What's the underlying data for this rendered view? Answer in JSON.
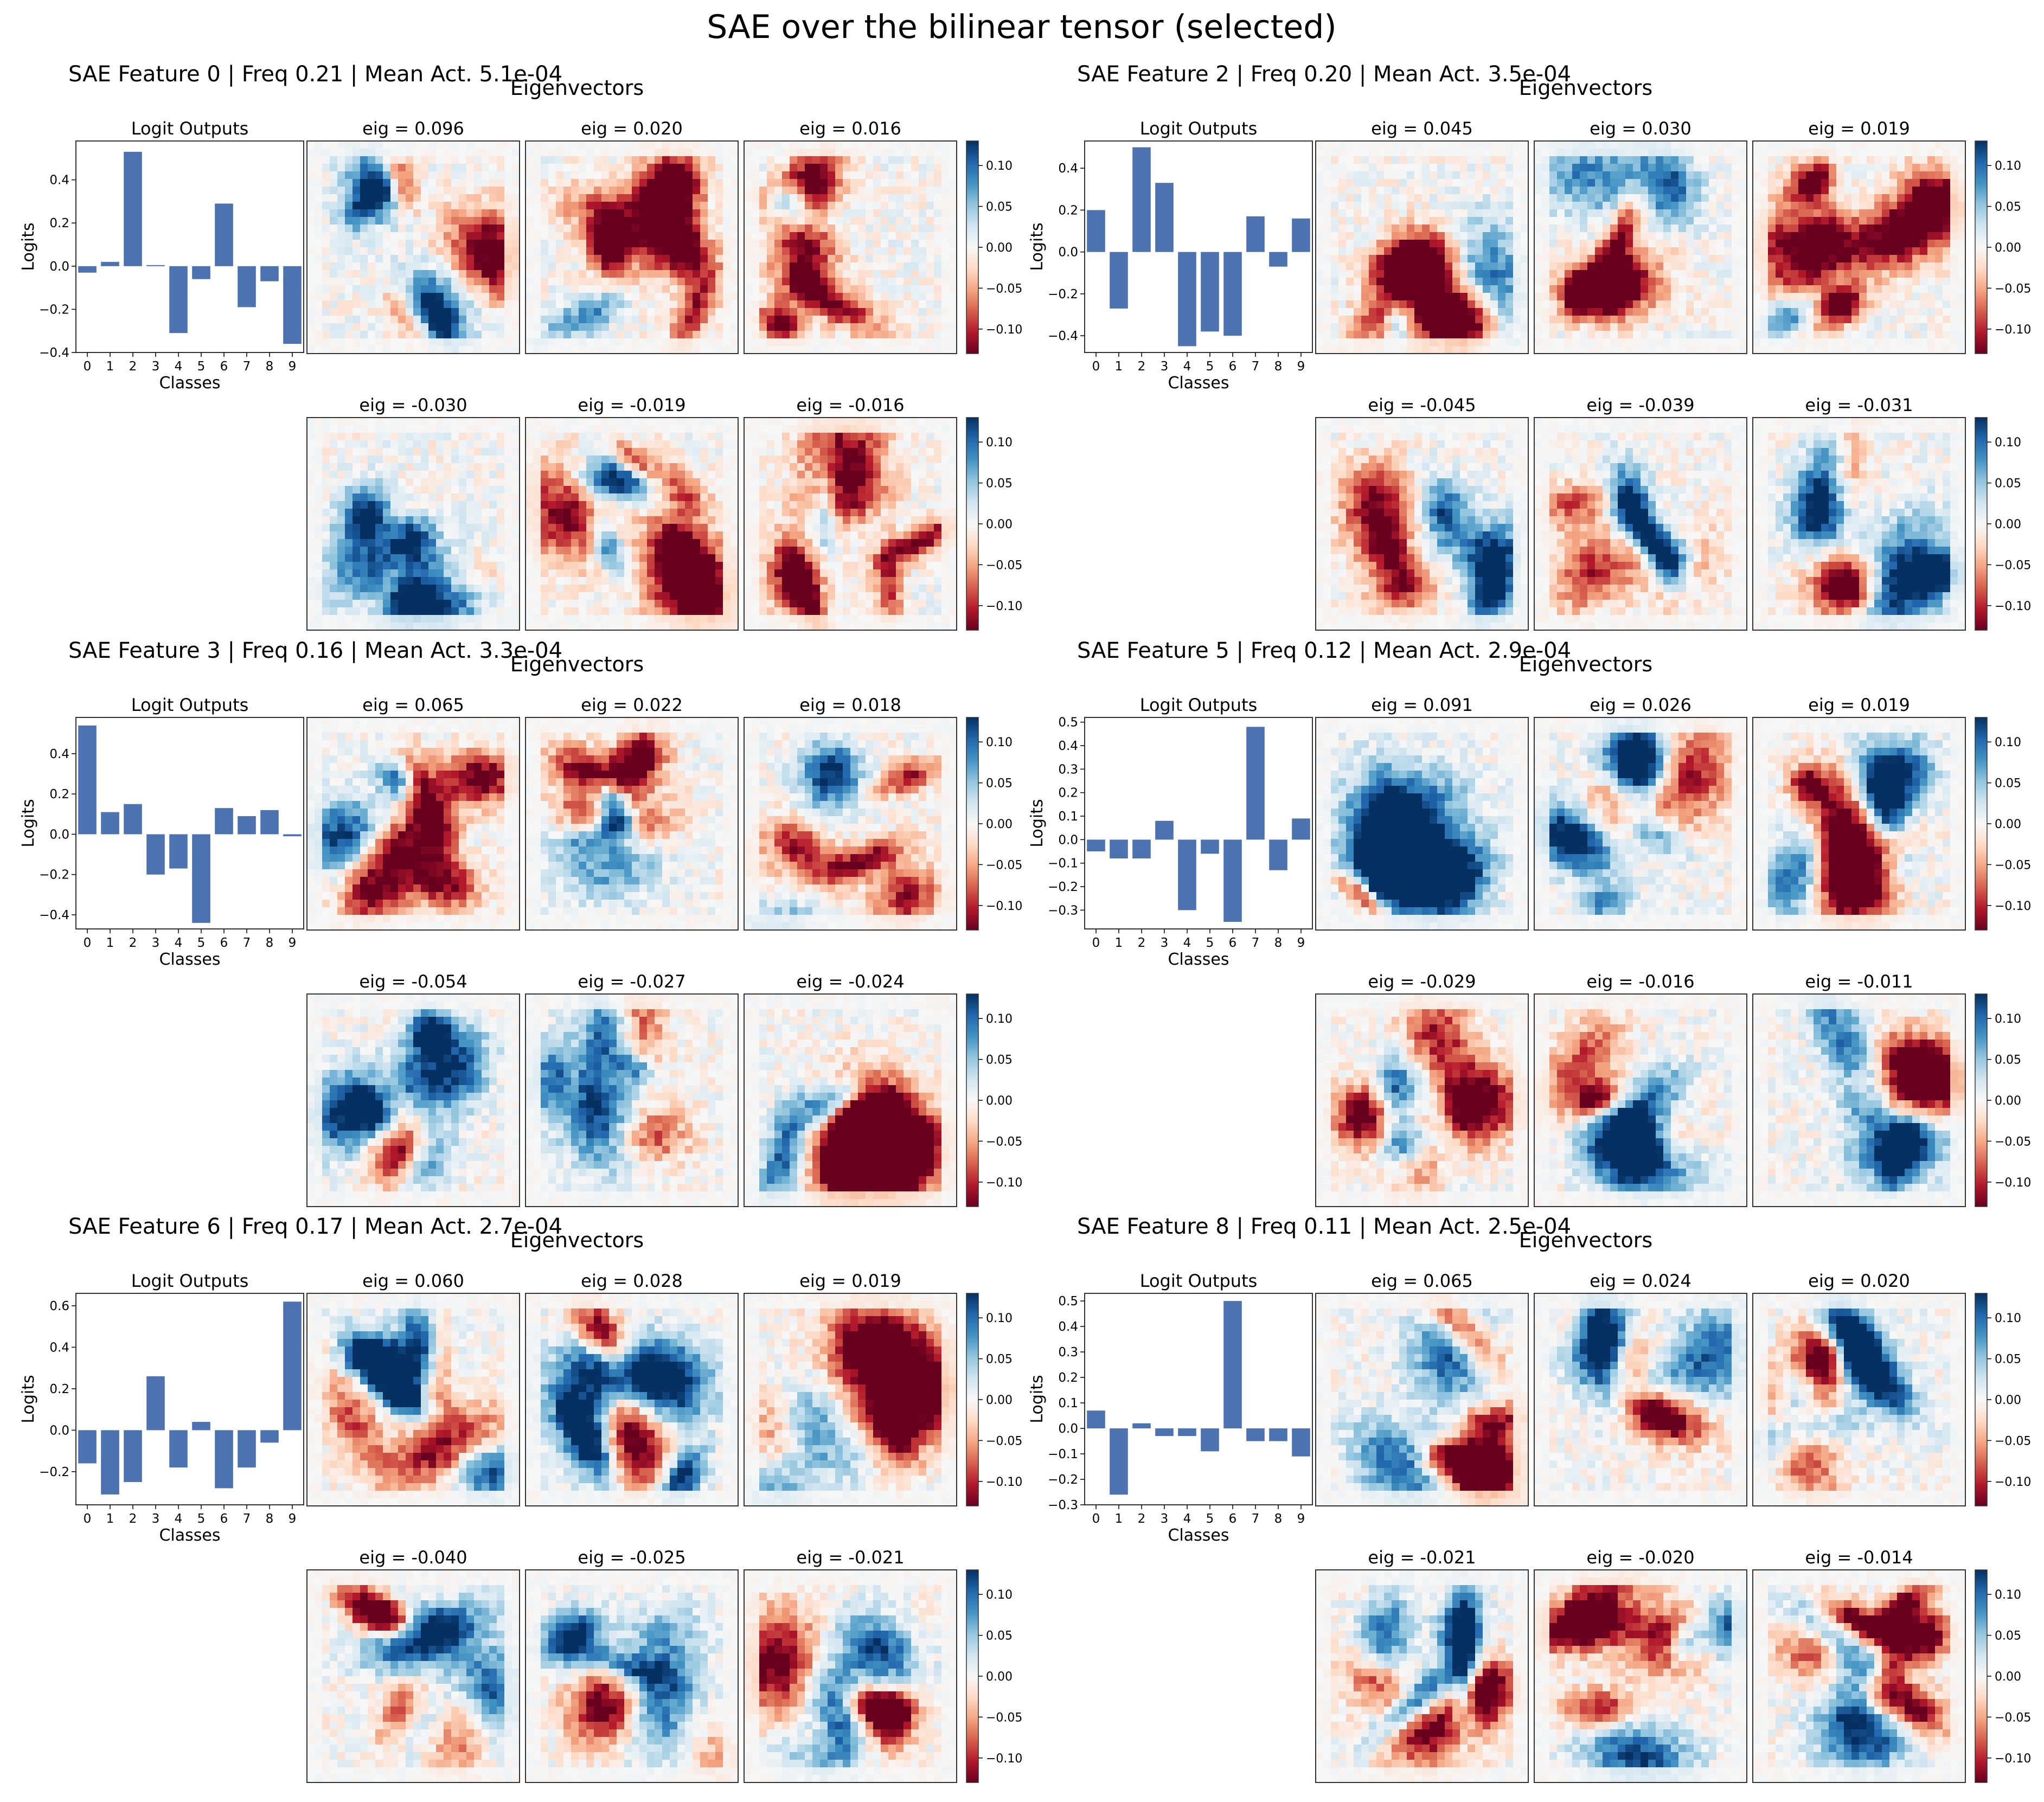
{
  "title": "SAE over the bilinear tensor (selected)",
  "eig_header": "Eigenvectors",
  "logit_title": "Logit Outputs",
  "xlabel": "Classes",
  "ylabel": "Logits",
  "eig_prefix": "eig = ",
  "colorbar": {
    "ticks": [
      "0.10",
      "0.05",
      "0.00",
      "−0.05",
      "−0.10"
    ],
    "tick_values": [
      0.1,
      0.05,
      0.0,
      -0.05,
      -0.1
    ],
    "range": [
      -0.13,
      0.13
    ],
    "colormap": "RdBu",
    "colors": [
      "#67001f",
      "#b2182b",
      "#d6604d",
      "#f4a582",
      "#fddbc7",
      "#f7f7f7",
      "#d1e5f0",
      "#92c5de",
      "#4393c3",
      "#2166ac",
      "#053061"
    ]
  },
  "bar_color": "#4c72b0",
  "chart_data": [
    {
      "type": "bar",
      "header": "SAE Feature 0 | Freq 0.21 | Mean Act. 5.1e-04",
      "categories": [
        "0",
        "1",
        "2",
        "3",
        "4",
        "5",
        "6",
        "7",
        "8",
        "9"
      ],
      "values": [
        -0.03,
        0.02,
        0.53,
        0.005,
        -0.31,
        -0.06,
        0.29,
        -0.19,
        -0.07,
        -0.36
      ],
      "ylim": [
        -0.4,
        0.58
      ],
      "yticks": [
        -0.4,
        -0.2,
        0.0,
        0.2,
        0.4
      ],
      "eigs_pos": [
        "0.096",
        "0.020",
        "0.016"
      ],
      "eigs_neg": [
        "-0.030",
        "-0.019",
        "-0.016"
      ]
    },
    {
      "type": "bar",
      "header": "SAE Feature 2 | Freq 0.20 | Mean Act. 3.5e-04",
      "categories": [
        "0",
        "1",
        "2",
        "3",
        "4",
        "5",
        "6",
        "7",
        "8",
        "9"
      ],
      "values": [
        0.2,
        -0.27,
        0.5,
        0.33,
        -0.45,
        -0.38,
        -0.4,
        0.17,
        -0.07,
        0.16
      ],
      "ylim": [
        -0.48,
        0.53
      ],
      "yticks": [
        -0.4,
        -0.2,
        0.0,
        0.2,
        0.4
      ],
      "eigs_pos": [
        "0.045",
        "0.030",
        "0.019"
      ],
      "eigs_neg": [
        "-0.045",
        "-0.039",
        "-0.031"
      ]
    },
    {
      "type": "bar",
      "header": "SAE Feature 3 | Freq 0.16 | Mean Act. 3.3e-04",
      "categories": [
        "0",
        "1",
        "2",
        "3",
        "4",
        "5",
        "6",
        "7",
        "8",
        "9"
      ],
      "values": [
        0.54,
        0.11,
        0.15,
        -0.2,
        -0.17,
        -0.44,
        0.13,
        0.09,
        0.12,
        -0.01
      ],
      "ylim": [
        -0.47,
        0.58
      ],
      "yticks": [
        -0.4,
        -0.2,
        0.0,
        0.2,
        0.4
      ],
      "eigs_pos": [
        "0.065",
        "0.022",
        "0.018"
      ],
      "eigs_neg": [
        "-0.054",
        "-0.027",
        "-0.024"
      ]
    },
    {
      "type": "bar",
      "header": "SAE Feature 5 | Freq 0.12 | Mean Act. 2.9e-04",
      "categories": [
        "0",
        "1",
        "2",
        "3",
        "4",
        "5",
        "6",
        "7",
        "8",
        "9"
      ],
      "values": [
        -0.05,
        -0.08,
        -0.08,
        0.08,
        -0.3,
        -0.06,
        -0.35,
        0.48,
        -0.13,
        0.09
      ],
      "ylim": [
        -0.38,
        0.52
      ],
      "yticks": [
        -0.3,
        -0.2,
        -0.1,
        0.0,
        0.1,
        0.2,
        0.3,
        0.4,
        0.5
      ],
      "eigs_pos": [
        "0.091",
        "0.026",
        "0.019"
      ],
      "eigs_neg": [
        "-0.029",
        "-0.016",
        "-0.011"
      ]
    },
    {
      "type": "bar",
      "header": "SAE Feature 6 | Freq 0.17 | Mean Act. 2.7e-04",
      "categories": [
        "0",
        "1",
        "2",
        "3",
        "4",
        "5",
        "6",
        "7",
        "8",
        "9"
      ],
      "values": [
        -0.16,
        -0.31,
        -0.25,
        0.26,
        -0.18,
        0.04,
        -0.28,
        -0.18,
        -0.06,
        0.62
      ],
      "ylim": [
        -0.36,
        0.66
      ],
      "yticks": [
        -0.2,
        0.0,
        0.2,
        0.4,
        0.6
      ],
      "eigs_pos": [
        "0.060",
        "0.028",
        "0.019"
      ],
      "eigs_neg": [
        "-0.040",
        "-0.025",
        "-0.021"
      ]
    },
    {
      "type": "bar",
      "header": "SAE Feature 8 | Freq 0.11 | Mean Act. 2.5e-04",
      "categories": [
        "0",
        "1",
        "2",
        "3",
        "4",
        "5",
        "6",
        "7",
        "8",
        "9"
      ],
      "values": [
        0.07,
        -0.26,
        0.02,
        -0.03,
        -0.03,
        -0.09,
        0.5,
        -0.05,
        -0.05,
        -0.11
      ],
      "ylim": [
        -0.3,
        0.53
      ],
      "yticks": [
        -0.3,
        -0.2,
        -0.1,
        0.0,
        0.1,
        0.2,
        0.3,
        0.4,
        0.5
      ],
      "eigs_pos": [
        "0.065",
        "0.024",
        "0.020"
      ],
      "eigs_neg": [
        "-0.021",
        "-0.020",
        "-0.014"
      ]
    }
  ]
}
